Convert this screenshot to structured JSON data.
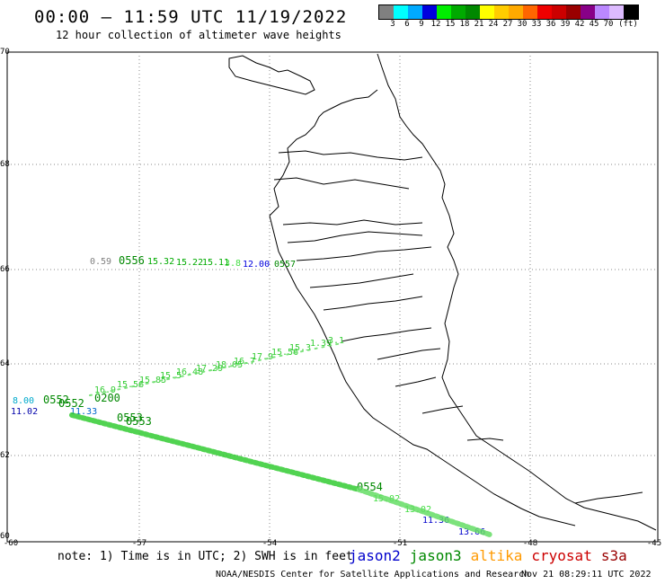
{
  "header": {
    "title": "00:00 – 11:59 UTC 11/19/2022",
    "subtitle": "12 hour collection of altimeter wave heights"
  },
  "legend": {
    "colors": [
      "#808080",
      "#00ffff",
      "#00aaff",
      "#0000dd",
      "#00ee00",
      "#00aa00",
      "#008800",
      "#ffff00",
      "#ffcc00",
      "#ffaa00",
      "#ff6600",
      "#ee0000",
      "#cc0000",
      "#990000",
      "#880088",
      "#bb88ff",
      "#ddbbff",
      "#000000"
    ],
    "labels": [
      "3",
      "6",
      "9",
      "12",
      "15",
      "18",
      "21",
      "24",
      "27",
      "30",
      "33",
      "36",
      "39",
      "42",
      "45",
      "70",
      "(ft)"
    ]
  },
  "axes": {
    "lat_labels": [
      "70",
      "68",
      "66",
      "64",
      "62",
      "60"
    ],
    "lon_labels": [
      "-60",
      "-57",
      "-54",
      "-51",
      "-48",
      "-45"
    ]
  },
  "tracks": {
    "track1_labels": [
      "0.59",
      "0556",
      "15.32",
      "15.22",
      "15.11",
      "3.8",
      "12.00",
      "0557"
    ],
    "track2_labels": [
      "16.9",
      "15.56",
      "15.85",
      "15.5",
      "16.48",
      "17.29",
      "18.05",
      "16.7",
      "17.9",
      "15.56",
      "15.3",
      "1.39",
      "3.1"
    ],
    "track3_labels": [
      "8.00",
      "0552",
      "0552",
      "0200",
      "11.02",
      "11.33"
    ],
    "track4_labels": [
      "0553",
      "0553",
      "0554",
      "15.02",
      "13.02",
      "11.36",
      "13.66"
    ]
  },
  "footer": {
    "note": "note: 1) Time is in UTC; 2) SWH is in feet",
    "satellites": [
      {
        "name": "jason2",
        "color": "#0000cc"
      },
      {
        "name": "jason3",
        "color": "#008800"
      },
      {
        "name": "altika",
        "color": "#ff9900"
      },
      {
        "name": "cryosat",
        "color": "#cc0000"
      },
      {
        "name": "s3a",
        "color": "#990000"
      }
    ],
    "credit": "NOAA/NESDIS Center for Satellite Applications and Research",
    "generated": "Nov 21 08:29:11 UTC 2022"
  }
}
